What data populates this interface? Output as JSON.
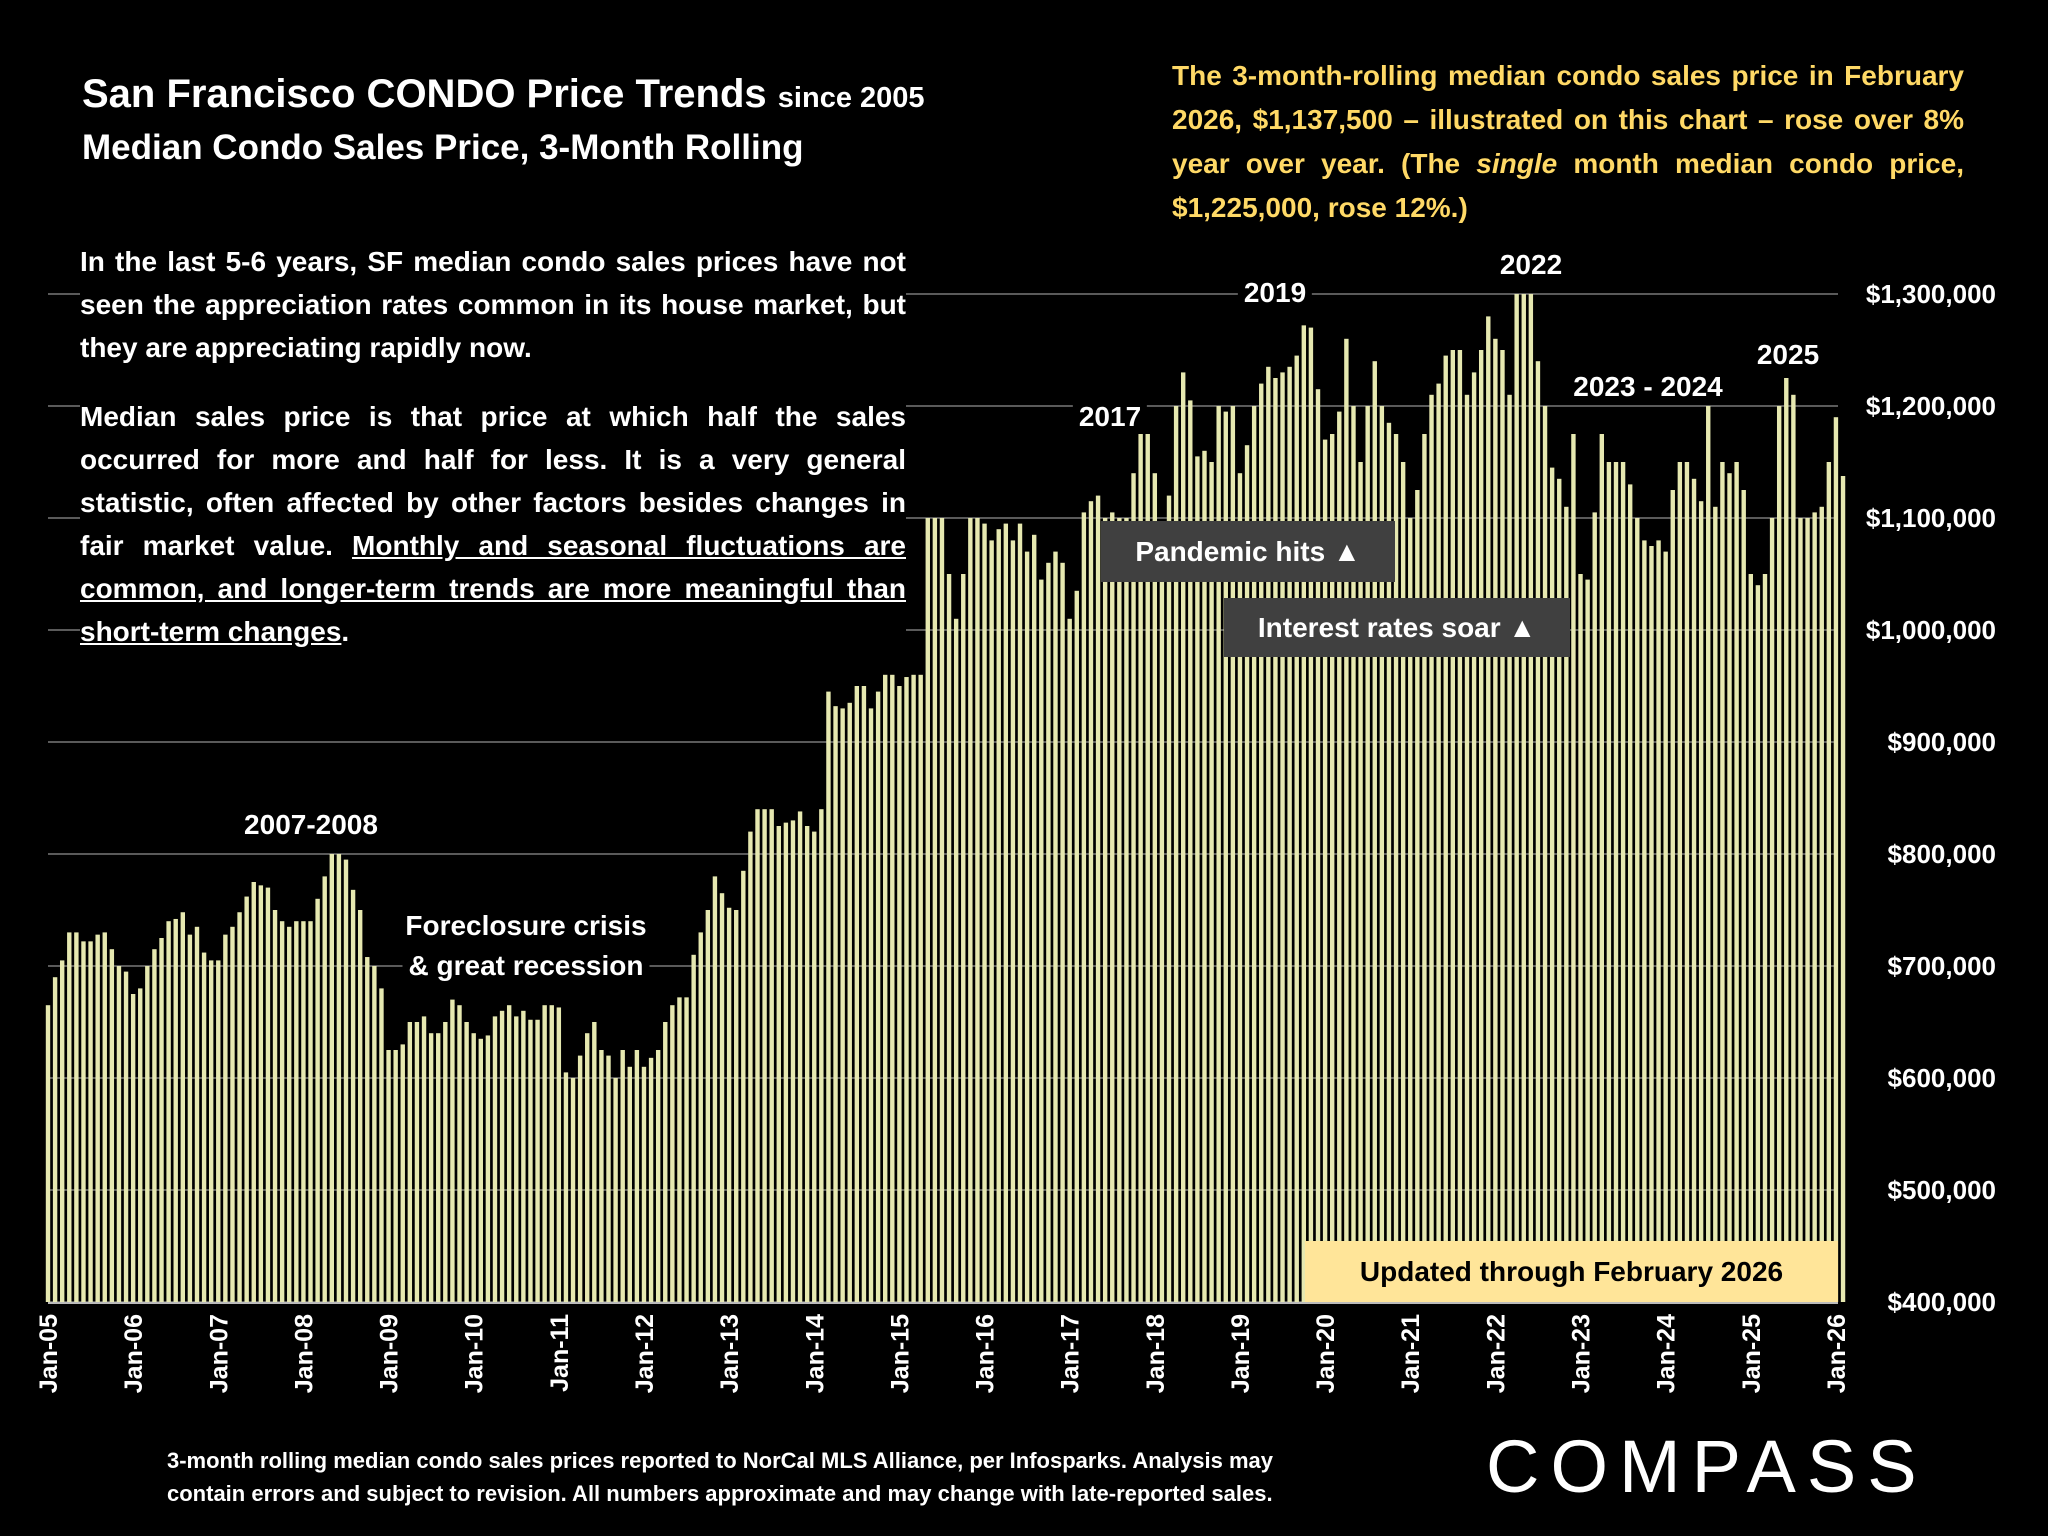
{
  "chart_data": {
    "type": "bar",
    "title": "San Francisco CONDO Price Trends",
    "title_note": "since 2005",
    "subtitle": "Median Condo Sales Price, 3-Month Rolling",
    "note": [
      "The 3-month-rolling median condo sales price in February 2026, $1,137,500 – illustrated on this chart – rose over 8% year over year. (The ",
      "single",
      " month median condo price, $1,225,000, rose 12%.)"
    ],
    "paragraphs": [
      [
        "In the last 5-6 years, SF median condo sales prices have not seen the appreciation rates common in its house market, but they are appreciating rapidly now."
      ],
      [
        "Median sales price is that price at which half the sales occurred for more and half for less. It is a very general statistic, often affected by other factors besides changes in fair market value. ",
        "Monthly and seasonal fluctuations are common, and longer-term trends are more meaningful than short-term changes",
        "."
      ]
    ],
    "annotations": [
      "2007-2008",
      "Foreclosure crisis",
      "& great recession",
      "2017",
      "2019",
      "2022",
      "2023 - 2024",
      "2025",
      "Pandemic hits ▲",
      "Interest rates soar ▲",
      "Updated through February 2026"
    ],
    "footer": [
      "3-month rolling median condo sales prices reported to NorCal MLS Alliance, per Infosparks. Analysis may",
      "contain errors and subject to revision. All numbers approximate and may change with late-reported sales."
    ],
    "logo": "COMPASS",
    "color": "#e6e8b0",
    "grid": true,
    "categories": [
      "Jan-05",
      null,
      null,
      null,
      null,
      null,
      null,
      null,
      null,
      null,
      null,
      null,
      "Jan-06",
      null,
      null,
      null,
      null,
      null,
      null,
      null,
      null,
      null,
      null,
      null,
      "Jan-07",
      null,
      null,
      null,
      null,
      null,
      null,
      null,
      null,
      null,
      null,
      null,
      "Jan-08",
      null,
      null,
      null,
      null,
      null,
      null,
      null,
      null,
      null,
      null,
      null,
      "Jan-09",
      null,
      null,
      null,
      null,
      null,
      null,
      null,
      null,
      null,
      null,
      null,
      "Jan-10",
      null,
      null,
      null,
      null,
      null,
      null,
      null,
      null,
      null,
      null,
      null,
      "Jan-11",
      null,
      null,
      null,
      null,
      null,
      null,
      null,
      null,
      null,
      null,
      null,
      "Jan-12",
      null,
      null,
      null,
      null,
      null,
      null,
      null,
      null,
      null,
      null,
      null,
      "Jan-13",
      null,
      null,
      null,
      null,
      null,
      null,
      null,
      null,
      null,
      null,
      null,
      "Jan-14",
      null,
      null,
      null,
      null,
      null,
      null,
      null,
      null,
      null,
      null,
      null,
      "Jan-15",
      null,
      null,
      null,
      null,
      null,
      null,
      null,
      null,
      null,
      null,
      null,
      "Jan-16",
      null,
      null,
      null,
      null,
      null,
      null,
      null,
      null,
      null,
      null,
      null,
      "Jan-17",
      null,
      null,
      null,
      null,
      null,
      null,
      null,
      null,
      null,
      null,
      null,
      "Jan-18",
      null,
      null,
      null,
      null,
      null,
      null,
      null,
      null,
      null,
      null,
      null,
      "Jan-19",
      null,
      null,
      null,
      null,
      null,
      null,
      null,
      null,
      null,
      null,
      null,
      "Jan-20",
      null,
      null,
      null,
      null,
      null,
      null,
      null,
      null,
      null,
      null,
      null,
      "Jan-21",
      null,
      null,
      null,
      null,
      null,
      null,
      null,
      null,
      null,
      null,
      null,
      "Jan-22",
      null,
      null,
      null,
      null,
      null,
      null,
      null,
      null,
      null,
      null,
      null,
      "Jan-23",
      null,
      null,
      null,
      null,
      null,
      null,
      null,
      null,
      null,
      null,
      null,
      "Jan-24",
      null,
      null,
      null,
      null,
      null,
      null,
      null,
      null,
      null,
      null,
      null,
      "Jan-25",
      null,
      null,
      null,
      null,
      null,
      null,
      null,
      null,
      null,
      null,
      null,
      "Jan-26",
      null
    ],
    "values": [
      665000,
      690000,
      705000,
      730000,
      730000,
      722000,
      722000,
      728000,
      730000,
      715000,
      700000,
      695000,
      675000,
      680000,
      700000,
      715000,
      725000,
      740000,
      742000,
      748000,
      728000,
      735000,
      712000,
      705000,
      705000,
      728000,
      735000,
      748000,
      762000,
      775000,
      772000,
      770000,
      750000,
      740000,
      735000,
      740000,
      740000,
      740000,
      760000,
      780000,
      800000,
      800000,
      795000,
      768000,
      750000,
      708000,
      700000,
      680000,
      625000,
      625000,
      630000,
      650000,
      650000,
      655000,
      640000,
      640000,
      650000,
      670000,
      665000,
      650000,
      640000,
      635000,
      638000,
      655000,
      660000,
      665000,
      655000,
      660000,
      652000,
      652000,
      665000,
      665000,
      663000,
      605000,
      600000,
      620000,
      640000,
      650000,
      625000,
      620000,
      600000,
      625000,
      610000,
      625000,
      610000,
      618000,
      625000,
      650000,
      665000,
      672000,
      672000,
      710000,
      730000,
      750000,
      780000,
      765000,
      752000,
      750000,
      785000,
      820000,
      840000,
      840000,
      840000,
      825000,
      828000,
      830000,
      838000,
      825000,
      820000,
      840000,
      945000,
      932000,
      930000,
      935000,
      950000,
      950000,
      930000,
      945000,
      960000,
      960000,
      950000,
      958000,
      960000,
      960000,
      1100000,
      1100000,
      1100000,
      1050000,
      1010000,
      1050000,
      1100000,
      1100000,
      1095000,
      1080000,
      1090000,
      1095000,
      1080000,
      1095000,
      1070000,
      1085000,
      1045000,
      1060000,
      1070000,
      1060000,
      1010000,
      1035000,
      1105000,
      1115000,
      1120000,
      1100000,
      1105000,
      1100000,
      1100000,
      1140000,
      1175000,
      1175000,
      1140000,
      1090000,
      1120000,
      1200000,
      1230000,
      1205000,
      1155000,
      1160000,
      1150000,
      1200000,
      1195000,
      1200000,
      1140000,
      1165000,
      1200000,
      1220000,
      1235000,
      1225000,
      1230000,
      1235000,
      1245000,
      1272000,
      1270000,
      1215000,
      1170000,
      1175000,
      1195000,
      1260000,
      1200000,
      1150000,
      1200000,
      1240000,
      1200000,
      1185000,
      1175000,
      1150000,
      1100000,
      1125000,
      1175000,
      1210000,
      1220000,
      1245000,
      1250000,
      1250000,
      1210000,
      1230000,
      1250000,
      1280000,
      1260000,
      1250000,
      1210000,
      1300000,
      1300000,
      1300000,
      1240000,
      1200000,
      1145000,
      1135000,
      1110000,
      1175000,
      1050000,
      1045000,
      1105000,
      1175000,
      1150000,
      1150000,
      1150000,
      1130000,
      1100000,
      1080000,
      1075000,
      1080000,
      1070000,
      1125000,
      1150000,
      1150000,
      1135000,
      1115000,
      1200000,
      1110000,
      1150000,
      1140000,
      1150000,
      1125000,
      1050000,
      1040000,
      1050000,
      1100000,
      1200000,
      1225000,
      1210000,
      1100000,
      1100000,
      1105000,
      1110000,
      1150000,
      1190000,
      1137500
    ],
    "ylim": [
      400000,
      1300000
    ],
    "yticks": [
      {
        "value": 400000,
        "label": "$400,000"
      },
      {
        "value": 500000,
        "label": "$500,000"
      },
      {
        "value": 600000,
        "label": "$600,000"
      },
      {
        "value": 700000,
        "label": "$700,000"
      },
      {
        "value": 800000,
        "label": "$800,000"
      },
      {
        "value": 900000,
        "label": "$900,000"
      },
      {
        "value": 1000000,
        "label": "$1,000,000"
      },
      {
        "value": 1100000,
        "label": "$1,100,000"
      },
      {
        "value": 1200000,
        "label": "$1,200,000"
      },
      {
        "value": 1300000,
        "label": "$1,300,000"
      }
    ]
  }
}
